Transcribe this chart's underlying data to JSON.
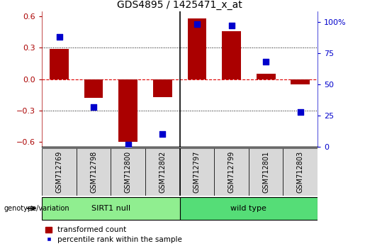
{
  "title": "GDS4895 / 1425471_x_at",
  "samples": [
    "GSM712769",
    "GSM712798",
    "GSM712800",
    "GSM712802",
    "GSM712797",
    "GSM712799",
    "GSM712801",
    "GSM712803"
  ],
  "transformed_count": [
    0.29,
    -0.18,
    -0.6,
    -0.17,
    0.58,
    0.46,
    0.05,
    -0.05
  ],
  "percentile_rank": [
    88,
    32,
    2,
    10,
    98,
    97,
    68,
    28
  ],
  "groups": [
    {
      "label": "SIRT1 null",
      "indices": [
        0,
        1,
        2,
        3
      ],
      "color": "#90EE90"
    },
    {
      "label": "wild type",
      "indices": [
        4,
        5,
        6,
        7
      ],
      "color": "#55DD77"
    }
  ],
  "ylim_left": [
    -0.65,
    0.65
  ],
  "ylim_right": [
    0,
    108.3
  ],
  "yticks_left": [
    -0.6,
    -0.3,
    0.0,
    0.3,
    0.6
  ],
  "yticks_right": [
    0,
    25,
    50,
    75,
    100
  ],
  "ytick_labels_right": [
    "0",
    "25",
    "50",
    "75",
    "100%"
  ],
  "bar_color": "#AA0000",
  "dot_color": "#0000CC",
  "bar_width": 0.55,
  "hline_color": "#DD0000",
  "dot_size": 30,
  "legend_bar_label": "transformed count",
  "legend_dot_label": "percentile rank within the sample",
  "genotype_label": "genotype/variation"
}
